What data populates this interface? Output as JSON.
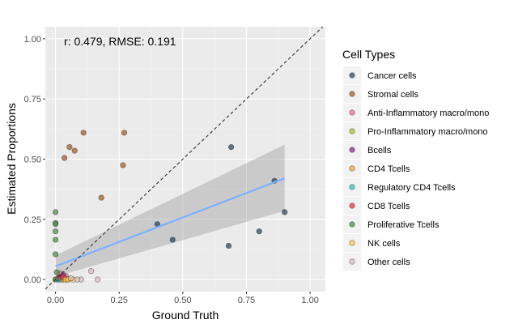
{
  "chart_data": {
    "type": "scatter",
    "title": "",
    "annotation": "r: 0.479, RMSE: 0.191",
    "xlabel": "Ground Truth",
    "ylabel": "Estimated Proportions",
    "xlim": [
      -0.04,
      1.06
    ],
    "ylim": [
      -0.05,
      1.05
    ],
    "x_ticks": [
      "0.00",
      "0.25",
      "0.50",
      "0.75",
      "1.00"
    ],
    "y_ticks": [
      "0.00",
      "0.25",
      "0.50",
      "0.75",
      "1.00"
    ],
    "grid": true,
    "legend_title": "Cell Types",
    "legend_position": "right",
    "identity_line": true,
    "regression": {
      "x": [
        0.0,
        0.9
      ],
      "y": [
        0.055,
        0.42
      ],
      "band_lower": [
        0.012,
        0.285
      ],
      "band_upper": [
        0.1,
        0.56
      ]
    },
    "series": [
      {
        "name": "Cancer cells",
        "color": "#2f4858",
        "points": [
          [
            0.9,
            0.28
          ],
          [
            0.86,
            0.41
          ],
          [
            0.8,
            0.2
          ],
          [
            0.69,
            0.55
          ],
          [
            0.68,
            0.14
          ],
          [
            0.46,
            0.165
          ],
          [
            0.4,
            0.23
          ]
        ]
      },
      {
        "name": "Stromal cells",
        "color": "#a0612e",
        "points": [
          [
            0.27,
            0.61
          ],
          [
            0.265,
            0.475
          ],
          [
            0.11,
            0.61
          ],
          [
            0.055,
            0.55
          ],
          [
            0.075,
            0.535
          ],
          [
            0.035,
            0.505
          ],
          [
            0.18,
            0.34
          ]
        ]
      },
      {
        "name": "Anti-Inflammatory macro/mono",
        "color": "#e8709a",
        "points": [
          [
            0.02,
            0.025
          ],
          [
            0.03,
            0.02
          ],
          [
            0.04,
            0.015
          ],
          [
            0.015,
            0.01
          ]
        ]
      },
      {
        "name": "Pro-Inflammatory macro/mono",
        "color": "#a6c32e",
        "points": [
          [
            0.0,
            0.0
          ],
          [
            0.03,
            0.0
          ],
          [
            0.05,
            0.0
          ]
        ]
      },
      {
        "name": "Bcells",
        "color": "#8e2a8e",
        "points": [
          [
            0.02,
            0.01
          ],
          [
            0.03,
            0.015
          ],
          [
            0.025,
            0.005
          ]
        ]
      },
      {
        "name": "CD4 Tcells",
        "color": "#f2a93b",
        "points": [
          [
            0.02,
            0.0
          ],
          [
            0.04,
            0.0
          ],
          [
            0.03,
            0.0
          ]
        ]
      },
      {
        "name": "Regulatory CD4 Tcells",
        "color": "#38c3b8",
        "points": [
          [
            0.01,
            0.0
          ],
          [
            0.015,
            0.0
          ]
        ]
      },
      {
        "name": "CD8 Tcells",
        "color": "#e03c4c",
        "points": [
          [
            0.01,
            0.005
          ],
          [
            0.03,
            0.01
          ],
          [
            0.045,
            0.0
          ]
        ]
      },
      {
        "name": "Proliferative Tcells",
        "color": "#4f8a4f",
        "points": [
          [
            0.0,
            0.28
          ],
          [
            0.0,
            0.235
          ],
          [
            0.0,
            0.23
          ],
          [
            0.0,
            0.2
          ],
          [
            0.0,
            0.165
          ],
          [
            0.0,
            0.105
          ],
          [
            0.005,
            0.03
          ],
          [
            0.0,
            0.0
          ]
        ]
      },
      {
        "name": "NK cells",
        "color": "#f6c949",
        "points": [
          [
            0.04,
            0.0
          ],
          [
            0.05,
            0.0
          ],
          [
            0.07,
            0.0
          ]
        ]
      },
      {
        "name": "Other cells",
        "color": "#d7bfbf",
        "points": [
          [
            0.14,
            0.035
          ],
          [
            0.165,
            0.0
          ],
          [
            0.1,
            0.0
          ],
          [
            0.06,
            0.005
          ],
          [
            0.085,
            0.0
          ]
        ]
      }
    ]
  }
}
